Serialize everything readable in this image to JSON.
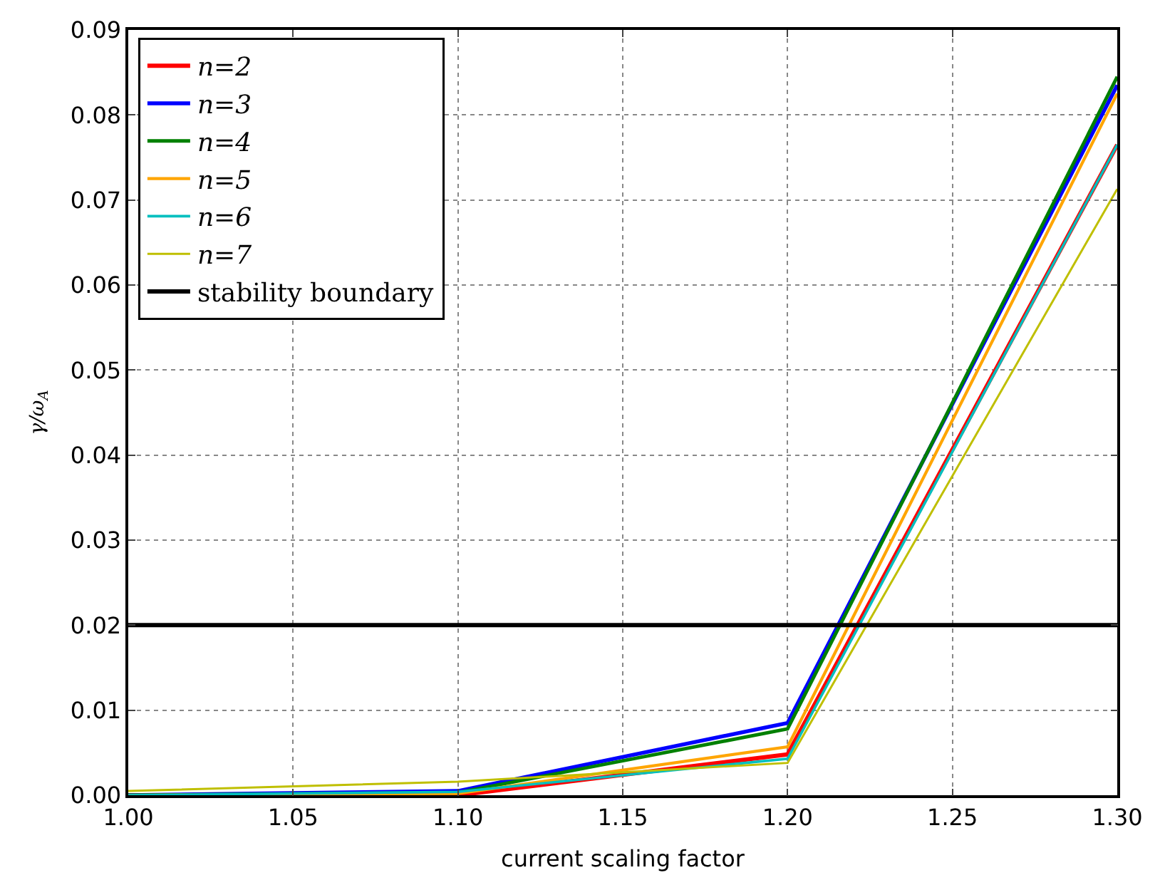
{
  "chart_data": {
    "type": "line",
    "xlabel": "current scaling factor",
    "ylabel": "γ/ω$_{A}$",
    "x": [
      1.0,
      1.1,
      1.2,
      1.3
    ],
    "series": [
      {
        "name": "n=2",
        "color": "#ff0000",
        "values": [
          0.0,
          0.0,
          0.0048,
          0.0765
        ]
      },
      {
        "name": "n=3",
        "color": "#0000ff",
        "values": [
          0.0,
          0.0005,
          0.0085,
          0.0835
        ]
      },
      {
        "name": "n=4",
        "color": "#008000",
        "values": [
          0.0,
          0.0003,
          0.0078,
          0.0845
        ]
      },
      {
        "name": "n=5",
        "color": "#ffa500",
        "values": [
          0.0,
          0.0002,
          0.0057,
          0.0825
        ]
      },
      {
        "name": "n=6",
        "color": "#00bfbf",
        "values": [
          0.0,
          0.0004,
          0.0043,
          0.0765
        ]
      },
      {
        "name": "n=7",
        "color": "#bfbf00",
        "values": [
          0.0005,
          0.0016,
          0.0038,
          0.0713
        ]
      }
    ],
    "ref_lines": [
      {
        "axis": "y",
        "value": 0.02,
        "label": "stability boundary",
        "color": "#000000"
      }
    ],
    "xlim": [
      1.0,
      1.3
    ],
    "xticks": [
      {
        "value": 1.0,
        "label": "1.00"
      },
      1.05,
      {
        "value": 1.1,
        "label": "1.10"
      },
      1.15,
      {
        "value": 1.2,
        "label": "1.20"
      },
      1.25,
      {
        "value": 1.3,
        "label": "1.30"
      }
    ],
    "ylim": [
      0,
      0.09
    ],
    "yticks": [
      {
        "value": 0,
        "label": "0.00"
      },
      {
        "value": 0.01,
        "label": "0.01"
      },
      {
        "value": 0.02,
        "label": "0.02"
      },
      {
        "value": 0.03,
        "label": "0.03"
      },
      {
        "value": 0.04,
        "label": "0.04"
      },
      {
        "value": 0.05,
        "label": "0.05"
      },
      {
        "value": 0.06,
        "label": "0.06"
      },
      {
        "value": 0.07,
        "label": "0.07"
      },
      {
        "value": 0.08,
        "label": "0.08"
      },
      {
        "value": 0.09,
        "label": "0.09"
      }
    ],
    "grid": true,
    "legend": "top left",
    "line_style": "solid",
    "marker": "none"
  }
}
